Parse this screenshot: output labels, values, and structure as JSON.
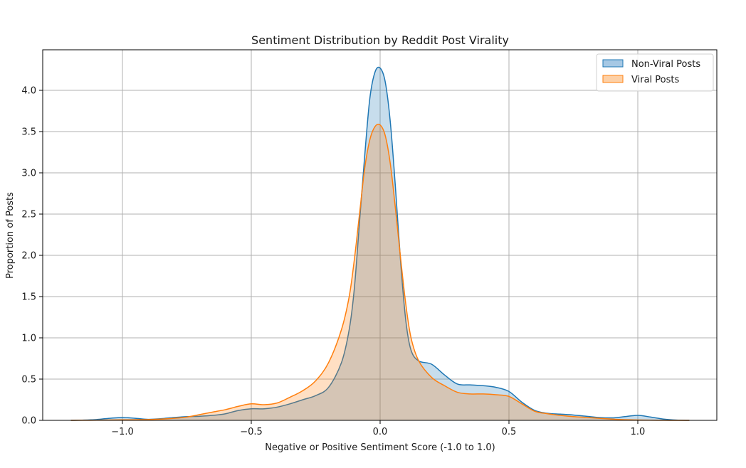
{
  "chart_data": {
    "type": "area",
    "subtype": "kde",
    "title": "Sentiment Distribution by Reddit Post Virality",
    "xlabel": "Negative or Positive Sentiment Score (-1.0 to 1.0)",
    "ylabel": "Proportion of Posts",
    "xlim": [
      -1.31,
      1.31
    ],
    "ylim": [
      0.0,
      4.49
    ],
    "xticks": [
      -1.0,
      -0.5,
      0.0,
      0.5,
      1.0
    ],
    "xtick_labels": [
      "−1.0",
      "−0.5",
      "0.0",
      "0.5",
      "1.0"
    ],
    "yticks": [
      0.0,
      0.5,
      1.0,
      1.5,
      2.0,
      2.5,
      3.0,
      3.5,
      4.0
    ],
    "ytick_labels": [
      "0.0",
      "0.5",
      "1.0",
      "1.5",
      "2.0",
      "2.5",
      "3.0",
      "3.5",
      "4.0"
    ],
    "grid": true,
    "legend_position": "upper right",
    "x": [
      -1.2,
      -1.15,
      -1.1,
      -1.05,
      -1.0,
      -0.95,
      -0.9,
      -0.85,
      -0.8,
      -0.75,
      -0.7,
      -0.65,
      -0.6,
      -0.55,
      -0.5,
      -0.45,
      -0.4,
      -0.35,
      -0.3,
      -0.25,
      -0.2,
      -0.15,
      -0.12,
      -0.1,
      -0.08,
      -0.06,
      -0.04,
      -0.02,
      0.0,
      0.02,
      0.04,
      0.06,
      0.08,
      0.1,
      0.12,
      0.15,
      0.2,
      0.25,
      0.3,
      0.35,
      0.4,
      0.45,
      0.5,
      0.55,
      0.6,
      0.65,
      0.7,
      0.75,
      0.8,
      0.85,
      0.9,
      0.95,
      1.0,
      1.05,
      1.1,
      1.15,
      1.2
    ],
    "series": [
      {
        "name": "Non-Viral Posts",
        "color": "#1f77b4",
        "fill": "#a6c8e4",
        "values": [
          0.0,
          0.003,
          0.01,
          0.025,
          0.035,
          0.025,
          0.012,
          0.02,
          0.035,
          0.045,
          0.05,
          0.06,
          0.08,
          0.12,
          0.14,
          0.14,
          0.16,
          0.2,
          0.25,
          0.3,
          0.4,
          0.7,
          1.1,
          1.6,
          2.4,
          3.2,
          3.9,
          4.22,
          4.27,
          4.1,
          3.6,
          2.8,
          1.9,
          1.2,
          0.85,
          0.72,
          0.68,
          0.55,
          0.44,
          0.43,
          0.42,
          0.4,
          0.35,
          0.22,
          0.12,
          0.085,
          0.075,
          0.065,
          0.05,
          0.035,
          0.03,
          0.045,
          0.06,
          0.04,
          0.015,
          0.003,
          0.0
        ]
      },
      {
        "name": "Viral Posts",
        "color": "#ff7f0e",
        "fill": "#fdd0a6",
        "values": [
          0.0,
          0.001,
          0.002,
          0.004,
          0.006,
          0.008,
          0.01,
          0.015,
          0.025,
          0.04,
          0.07,
          0.1,
          0.13,
          0.17,
          0.2,
          0.19,
          0.21,
          0.28,
          0.36,
          0.48,
          0.7,
          1.1,
          1.5,
          1.95,
          2.5,
          3.05,
          3.4,
          3.56,
          3.58,
          3.45,
          3.1,
          2.55,
          1.95,
          1.4,
          1.0,
          0.72,
          0.52,
          0.42,
          0.34,
          0.32,
          0.32,
          0.31,
          0.29,
          0.2,
          0.11,
          0.08,
          0.06,
          0.045,
          0.035,
          0.025,
          0.015,
          0.008,
          0.004,
          0.002,
          0.001,
          0.0,
          0.0
        ]
      }
    ]
  }
}
